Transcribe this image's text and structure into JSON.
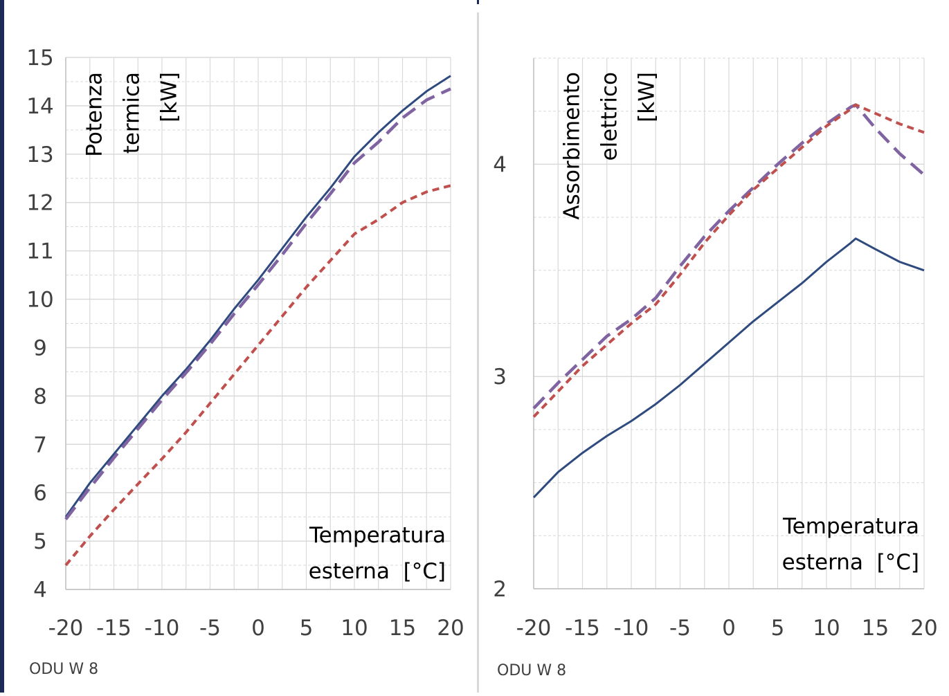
{
  "colors": {
    "frame": "#1c2a5a",
    "grid": "#d9d9d9",
    "series_solid": "#2e4a7e",
    "series_short_dash": "#c0504d",
    "series_long_dash": "#8064a2"
  },
  "chart_data": [
    {
      "type": "line",
      "annotation": [
        "Potenza",
        "termica",
        "[kW]"
      ],
      "xlabel": [
        "Temperatura",
        "esterna  [°C]"
      ],
      "footer": "ODU W 8",
      "xlim": [
        -20,
        20
      ],
      "ylim": [
        4,
        15
      ],
      "xticks": [
        "-20",
        "-15",
        "-10",
        "-5",
        "0",
        "5",
        "10",
        "15",
        "20"
      ],
      "yticks": [
        "4",
        "5",
        "6",
        "7",
        "8",
        "9",
        "10",
        "11",
        "12",
        "13",
        "14",
        "15"
      ],
      "x": [
        -20,
        -17.5,
        -15,
        -12.5,
        -10,
        -7.5,
        -5,
        -2.5,
        0,
        2.5,
        5,
        7.5,
        10,
        12.5,
        15,
        17.5,
        20
      ],
      "series": [
        {
          "style": "solid",
          "values": [
            5.5,
            6.2,
            6.8,
            7.4,
            8.0,
            8.55,
            9.15,
            9.8,
            10.4,
            11.05,
            11.7,
            12.3,
            12.95,
            13.45,
            13.9,
            14.3,
            14.62
          ]
        },
        {
          "style": "long-dash",
          "values": [
            5.45,
            6.1,
            6.72,
            7.32,
            7.92,
            8.48,
            9.07,
            9.7,
            10.3,
            10.92,
            11.57,
            12.18,
            12.82,
            13.25,
            13.75,
            14.12,
            14.35
          ]
        },
        {
          "style": "short-dash",
          "values": [
            4.5,
            5.1,
            5.65,
            6.18,
            6.7,
            7.25,
            7.85,
            8.45,
            9.05,
            9.65,
            10.25,
            10.8,
            11.35,
            11.65,
            12.0,
            12.22,
            12.35
          ]
        }
      ]
    },
    {
      "type": "line",
      "annotation": [
        "Assorbimento",
        "elettrico",
        "[kW]"
      ],
      "xlabel": [
        "Temperatura",
        "esterna  [°C]"
      ],
      "footer": "ODU W 8",
      "xlim": [
        -20,
        20
      ],
      "ylim": [
        2,
        4.5
      ],
      "xticks": [
        "-20",
        "-15",
        "-10",
        "-5",
        "0",
        "5",
        "10",
        "15",
        "20"
      ],
      "yticks": [
        "2",
        "3",
        "4"
      ],
      "x": [
        -20,
        -17.5,
        -15,
        -12.5,
        -10,
        -7.5,
        -5,
        -2.5,
        0,
        2.5,
        5,
        7.5,
        10,
        12.5,
        13,
        15,
        17.5,
        20
      ],
      "series": [
        {
          "style": "solid",
          "values": [
            2.43,
            2.55,
            2.64,
            2.72,
            2.79,
            2.87,
            2.96,
            3.06,
            3.16,
            3.26,
            3.35,
            3.44,
            3.54,
            3.63,
            3.65,
            3.6,
            3.54,
            3.5
          ]
        },
        {
          "style": "long-dash",
          "values": [
            2.85,
            2.97,
            3.08,
            3.19,
            3.27,
            3.37,
            3.52,
            3.66,
            3.78,
            3.89,
            4.0,
            4.1,
            4.19,
            4.27,
            4.28,
            4.17,
            4.05,
            3.95
          ]
        },
        {
          "style": "short-dash",
          "values": [
            2.81,
            2.93,
            3.05,
            3.15,
            3.25,
            3.34,
            3.48,
            3.63,
            3.76,
            3.88,
            3.98,
            4.08,
            4.18,
            4.26,
            4.28,
            4.24,
            4.19,
            4.15
          ]
        }
      ]
    }
  ]
}
